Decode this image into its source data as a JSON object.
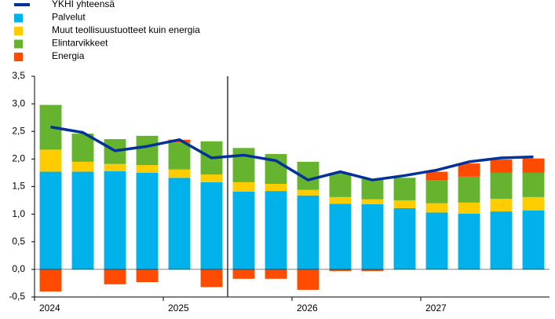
{
  "chart_data": {
    "type": "bar",
    "categories": [
      "2024",
      null,
      null,
      null,
      "2025",
      null,
      null,
      null,
      "2026",
      null,
      null,
      null,
      "2027",
      null,
      null,
      null
    ],
    "series": [
      {
        "name": "YKHI yhteensä",
        "type": "line",
        "color": "#003299",
        "values": [
          2.58,
          2.48,
          2.15,
          2.23,
          2.35,
          2.02,
          2.07,
          1.97,
          1.62,
          1.77,
          1.62,
          1.7,
          1.8,
          1.95,
          2.02,
          2.04
        ]
      },
      {
        "name": "Palvelut",
        "type": "bar",
        "color": "#00b1ea",
        "values": [
          1.77,
          1.77,
          1.78,
          1.75,
          1.66,
          1.58,
          1.41,
          1.42,
          1.34,
          1.19,
          1.18,
          1.11,
          1.03,
          1.01,
          1.05,
          1.07
        ]
      },
      {
        "name": "Muut teollisuustuotteet kuin energia",
        "type": "bar",
        "color": "#ffcc00",
        "values": [
          0.4,
          0.18,
          0.13,
          0.14,
          0.15,
          0.14,
          0.17,
          0.13,
          0.1,
          0.12,
          0.09,
          0.14,
          0.17,
          0.2,
          0.23,
          0.24
        ]
      },
      {
        "name": "Elintarvikkeet",
        "type": "bar",
        "color": "#65b32e",
        "values": [
          0.81,
          0.51,
          0.45,
          0.53,
          0.49,
          0.6,
          0.62,
          0.54,
          0.51,
          0.44,
          0.37,
          0.41,
          0.42,
          0.47,
          0.47,
          0.44
        ]
      },
      {
        "name": "Energia",
        "type": "bar",
        "color": "#ff4b00",
        "values": [
          -0.4,
          0,
          -0.27,
          -0.23,
          0.05,
          -0.32,
          -0.17,
          -0.17,
          -0.37,
          -0.03,
          -0.03,
          0,
          0.15,
          0.24,
          0.24,
          0.26
        ]
      }
    ],
    "ylim": [
      -0.5,
      3.5
    ],
    "yticks": [
      {
        "value": -0.5,
        "label": "-0,5"
      },
      {
        "value": 0,
        "label": "0,0"
      },
      {
        "value": 0.5,
        "label": "0,5"
      },
      {
        "value": 1,
        "label": "1,0"
      },
      {
        "value": 1.5,
        "label": "1,5"
      },
      {
        "value": 2,
        "label": "2,0"
      },
      {
        "value": 2.5,
        "label": "2,5"
      },
      {
        "value": 3,
        "label": "3,0"
      },
      {
        "value": 3.5,
        "label": "3,5"
      }
    ],
    "legend": "top-left"
  }
}
